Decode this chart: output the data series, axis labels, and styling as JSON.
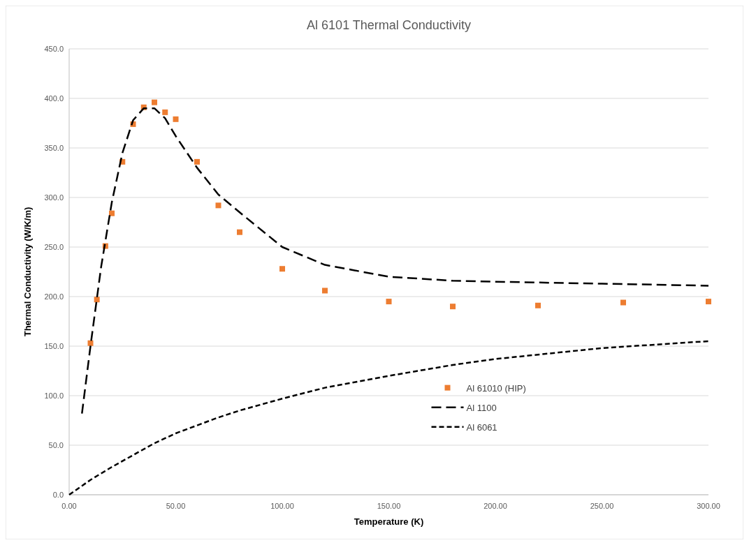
{
  "chart_data": {
    "type": "scatter",
    "title": "Al 6101 Thermal Conductivity",
    "xlabel": "Temperature (K)",
    "ylabel": "Thermal Conductivity (W/K/m)",
    "xlim": [
      0,
      300
    ],
    "xticks": [
      {
        "value": 0,
        "label": "0.00"
      },
      {
        "value": 50,
        "label": "50.00"
      },
      {
        "value": 100,
        "label": "100.00"
      },
      {
        "value": 150,
        "label": "150.00"
      },
      {
        "value": 200,
        "label": "200.00"
      },
      {
        "value": 250,
        "label": "250.00"
      },
      {
        "value": 300,
        "label": "300.00"
      }
    ],
    "ylim": [
      0,
      450
    ],
    "yticks": [
      {
        "value": 0,
        "label": "0.0"
      },
      {
        "value": 50,
        "label": "50.0"
      },
      {
        "value": 100,
        "label": "100.0"
      },
      {
        "value": 150,
        "label": "150.0"
      },
      {
        "value": 200,
        "label": "200.0"
      },
      {
        "value": 250,
        "label": "250.0"
      },
      {
        "value": 300,
        "label": "300.0"
      },
      {
        "value": 350,
        "label": "350.0"
      },
      {
        "value": 400,
        "label": "400.0"
      },
      {
        "value": 450,
        "label": "450.0"
      }
    ],
    "grid": "y",
    "legend": "bottom right",
    "series": [
      {
        "name": "Al 61010 (HIP)",
        "marker": "square",
        "color": "#ed7d31",
        "x": [
          10,
          13,
          17,
          20,
          25,
          30,
          35,
          40,
          45,
          50,
          60,
          70,
          80,
          100,
          120,
          150,
          180,
          220,
          260,
          300
        ],
        "values": [
          153,
          197,
          251,
          284,
          336,
          374,
          391,
          396,
          386,
          379,
          336,
          292,
          265,
          228,
          206,
          195,
          190,
          191,
          194,
          195
        ]
      },
      {
        "name": "Al 1100",
        "type": "line",
        "marker": "none",
        "line_style": "dashed",
        "color": "#000000",
        "x": [
          6,
          10,
          15,
          20,
          25,
          30,
          35,
          40,
          45,
          50,
          60,
          70,
          80,
          100,
          120,
          150,
          180,
          200,
          250,
          300
        ],
        "values": [
          82,
          150,
          230,
          295,
          345,
          378,
          390,
          390,
          380,
          362,
          330,
          303,
          285,
          250,
          232,
          220,
          216,
          215,
          213,
          211
        ]
      },
      {
        "name": "Al 6061",
        "type": "line",
        "marker": "none",
        "line_style": "dotted",
        "color": "#000000",
        "x": [
          0,
          10,
          20,
          30,
          40,
          50,
          70,
          80,
          100,
          120,
          150,
          180,
          200,
          250,
          300
        ],
        "values": [
          0,
          15,
          28,
          40,
          52,
          62,
          78,
          85,
          97,
          108,
          120,
          131,
          137,
          148,
          155
        ]
      }
    ]
  }
}
